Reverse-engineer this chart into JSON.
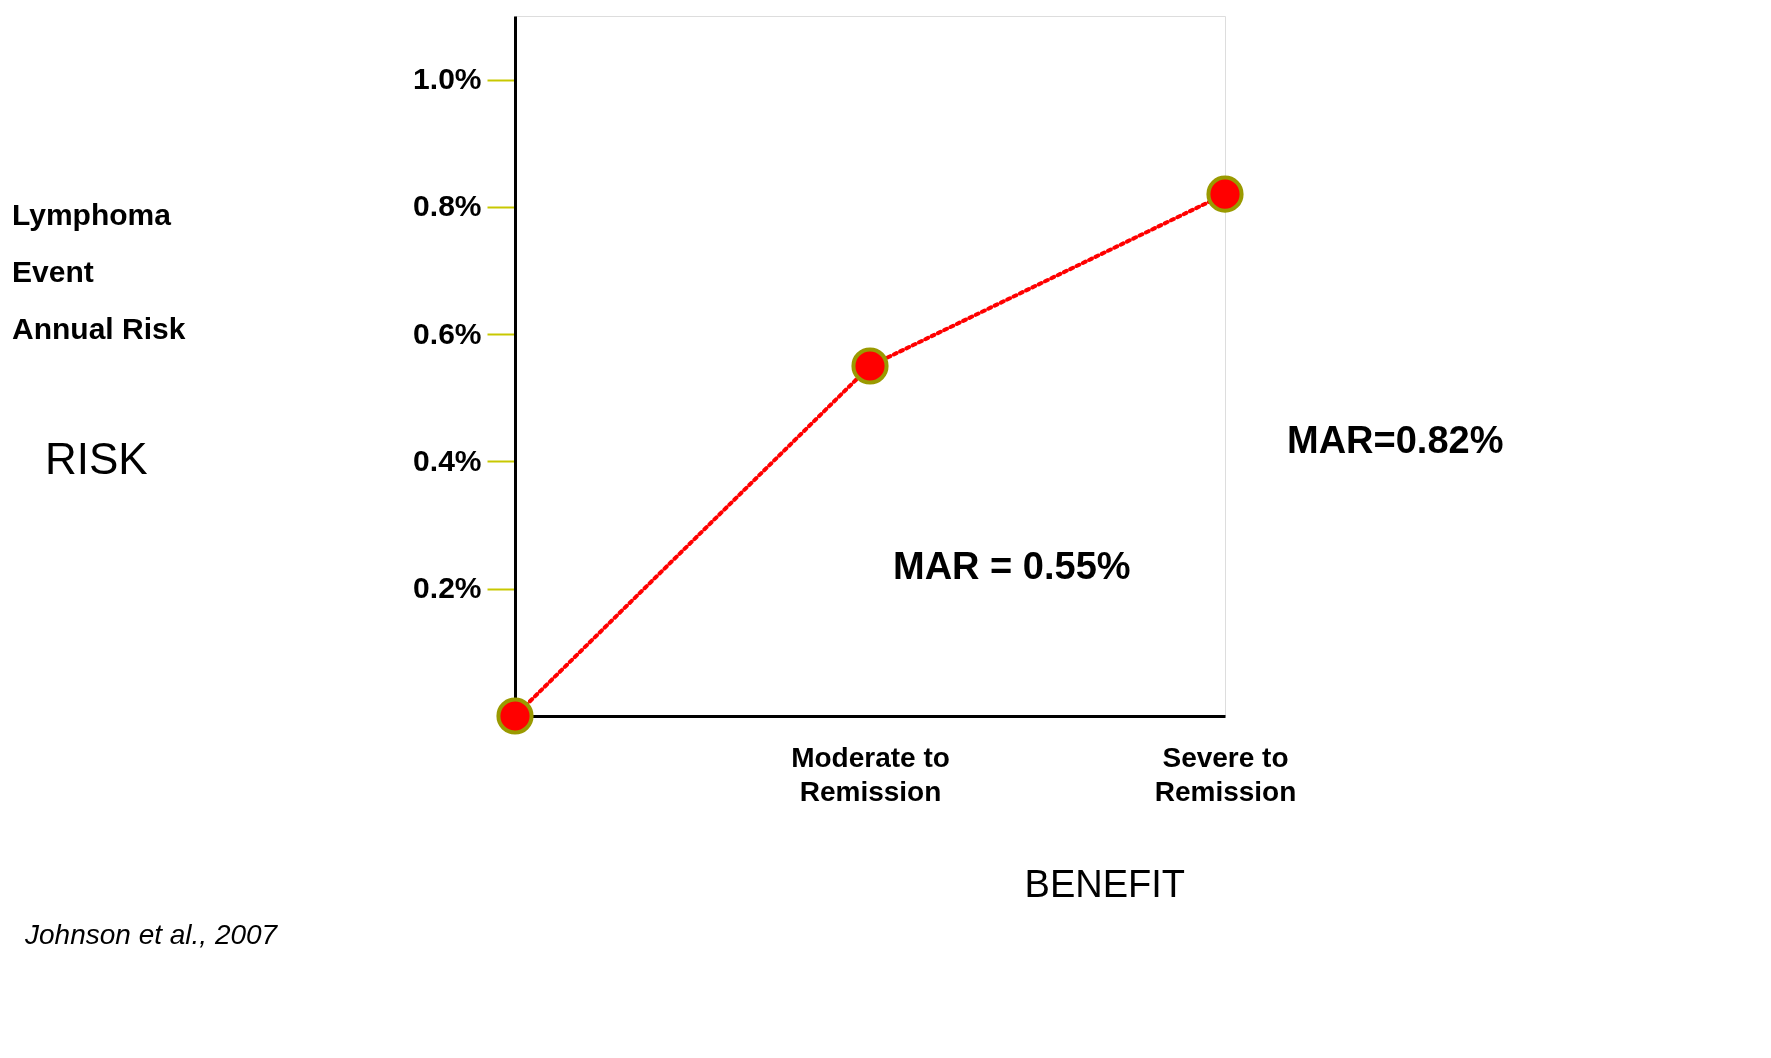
{
  "chart_data": {
    "type": "line",
    "categories": [
      null,
      "Moderate  to\nRemission",
      "Severe to\nRemission"
    ],
    "series": [
      {
        "color": "#ff0000",
        "values": [
          0,
          0.55,
          0.82
        ]
      }
    ],
    "xlabel": "BENEFIT",
    "ylim": [
      0,
      1.1
    ],
    "yticks": [
      {
        "value": 0.2,
        "label": "0.2%"
      },
      {
        "value": 0.4,
        "label": "0.4%"
      },
      {
        "value": 0.6,
        "label": "0.6%"
      },
      {
        "value": 0.8,
        "label": "0.8%"
      },
      {
        "value": 1.0,
        "label": "1.0%"
      }
    ],
    "annotations": [
      "Lymphoma\nEvent\nAnnual Risk",
      "RISK",
      "MAR = 0.55%",
      "MAR=0.82%",
      "Johnson et al., 2007"
    ],
    "marker": "circle",
    "line_style": "dotted",
    "grid": false
  }
}
